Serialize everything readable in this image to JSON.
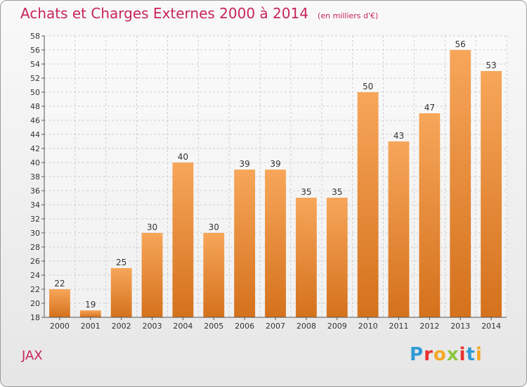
{
  "title": "Achats et Charges Externes 2000 à 2014",
  "subtitle": "(en milliers d'€)",
  "place_name": "JAX",
  "logo": {
    "letters": [
      "P",
      "r",
      "o",
      "x",
      "i",
      "t",
      "i"
    ],
    "colors": [
      "#2f9ad6",
      "#e8312f",
      "#f5a623",
      "#8cc63f",
      "#e8312f",
      "#2f9ad6",
      "#f5a623"
    ]
  },
  "colors": {
    "title": "#c8245c",
    "bar_light": "#f7a65a",
    "bar_dark": "#d4711c"
  },
  "chart_data": {
    "type": "bar",
    "title": "Achats et Charges Externes 2000 à 2014",
    "subtitle": "(en milliers d'€)",
    "categories": [
      "2000",
      "2001",
      "2002",
      "2003",
      "2004",
      "2005",
      "2006",
      "2007",
      "2008",
      "2009",
      "2010",
      "2011",
      "2012",
      "2013",
      "2014"
    ],
    "values": [
      22,
      19,
      25,
      30,
      40,
      30,
      39,
      39,
      35,
      35,
      50,
      43,
      47,
      56,
      53
    ],
    "ylim": [
      18,
      58
    ],
    "yticks": [
      18,
      20,
      22,
      24,
      26,
      28,
      30,
      32,
      34,
      36,
      38,
      40,
      42,
      44,
      46,
      48,
      50,
      52,
      54,
      56,
      58
    ],
    "grid": true,
    "xlabel": "",
    "ylabel": ""
  }
}
